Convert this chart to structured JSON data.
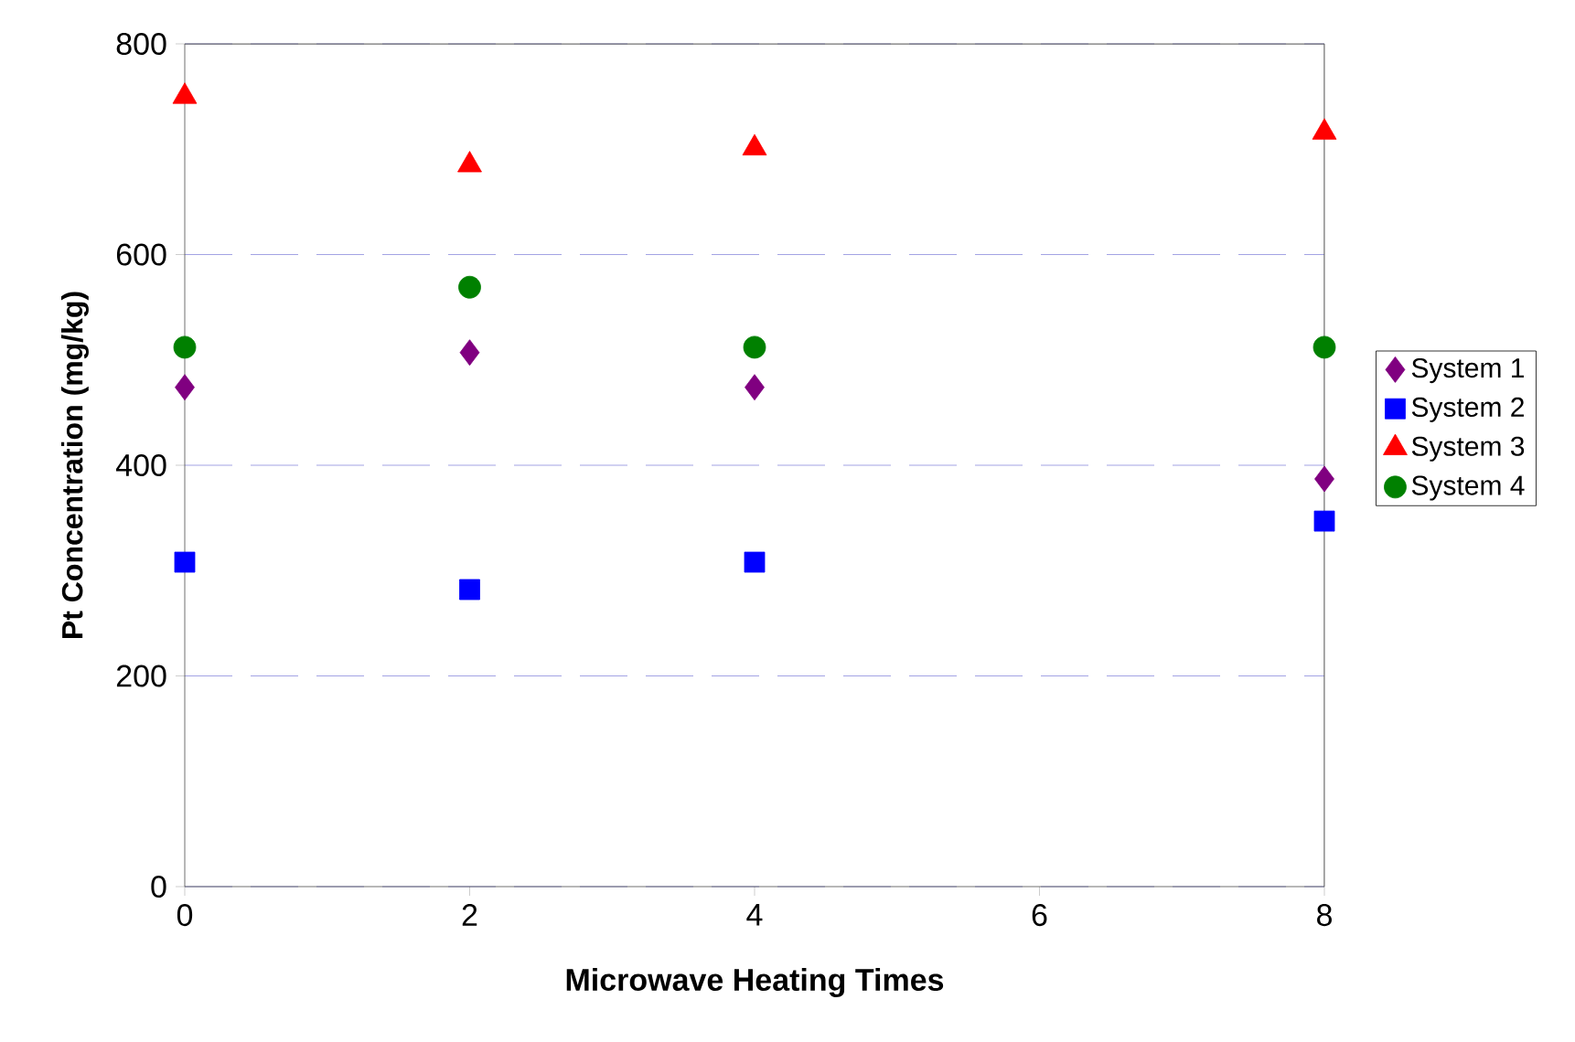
{
  "chart_data": {
    "type": "scatter",
    "xlabel": "Microwave Heating Times",
    "ylabel": "Pt Concentration (mg/kg)",
    "xlim": [
      0,
      8
    ],
    "ylim": [
      0,
      800
    ],
    "xticks": [
      0,
      2,
      4,
      6,
      8
    ],
    "yticks": [
      0,
      200,
      400,
      600,
      800
    ],
    "grid": "y",
    "legend": "right",
    "series": [
      {
        "name": "System 1",
        "color": "#800080",
        "marker": "diamond",
        "x": [
          0,
          2,
          4,
          8
        ],
        "values": [
          474,
          507,
          474,
          387
        ]
      },
      {
        "name": "System 2",
        "color": "#0000ff",
        "marker": "square",
        "x": [
          0,
          2,
          4,
          8
        ],
        "values": [
          308,
          282,
          308,
          347
        ]
      },
      {
        "name": "System 3",
        "color": "#ff0000",
        "marker": "triangle",
        "x": [
          0,
          2,
          4,
          8
        ],
        "values": [
          750,
          685,
          701,
          716
        ]
      },
      {
        "name": "System 4",
        "color": "#008000",
        "marker": "circle",
        "x": [
          0,
          2,
          4,
          8
        ],
        "values": [
          512,
          569,
          512,
          512
        ]
      }
    ]
  }
}
